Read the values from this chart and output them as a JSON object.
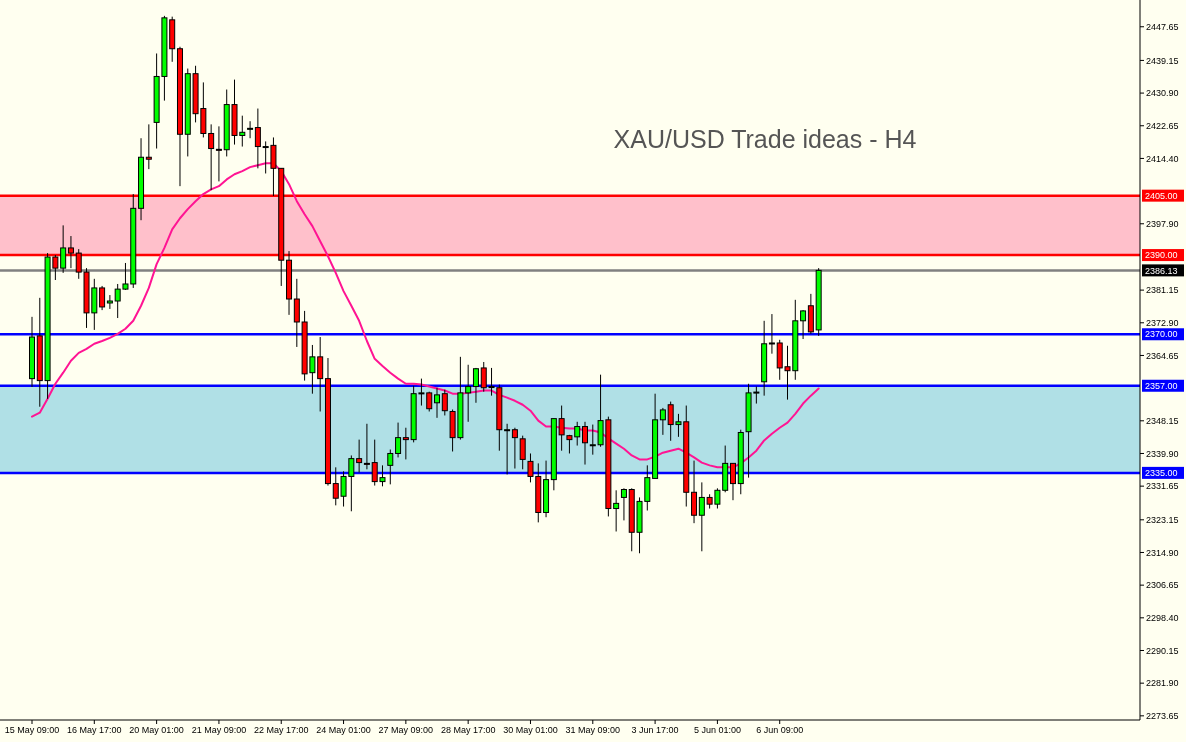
{
  "chart_data": {
    "type": "candlestick",
    "title": "XAU/USD Trade ideas - H4",
    "categories": [
      "15 May 09:00",
      null,
      null,
      null,
      null,
      null,
      null,
      null,
      "16 May 17:00",
      null,
      null,
      null,
      null,
      null,
      null,
      null,
      "20 May 01:00",
      null,
      null,
      null,
      null,
      null,
      null,
      null,
      "21 May 09:00",
      null,
      null,
      null,
      null,
      null,
      null,
      null,
      "22 May 17:00",
      null,
      null,
      null,
      null,
      null,
      null,
      null,
      "24 May 01:00",
      null,
      null,
      null,
      null,
      null,
      null,
      null,
      "27 May 09:00",
      null,
      null,
      null,
      null,
      null,
      null,
      null,
      "28 May 17:00",
      null,
      null,
      null,
      null,
      null,
      null,
      null,
      "30 May 01:00",
      null,
      null,
      null,
      null,
      null,
      null,
      null,
      "31 May 09:00",
      null,
      null,
      null,
      null,
      null,
      null,
      null,
      "3 Jun 17:00",
      null,
      null,
      null,
      null,
      null,
      null,
      null,
      "5 Jun 01:00",
      null,
      null,
      null,
      null,
      null,
      null,
      null,
      "6 Jun 09:00",
      null,
      null,
      null,
      null,
      null,
      null,
      null,
      null,
      null,
      null,
      null,
      null,
      null,
      null,
      null,
      null,
      null,
      null,
      null,
      null,
      null,
      null,
      null,
      null,
      null,
      null,
      null,
      null,
      null,
      null,
      null,
      null,
      null,
      null,
      null,
      null,
      null,
      null,
      null,
      null,
      null,
      null,
      null,
      null,
      null,
      null
    ],
    "ohlc": [
      [
        2358.8,
        2374.4,
        2356.7,
        2369.3
      ],
      [
        2369.6,
        2379.2,
        2351.7,
        2358.3
      ],
      [
        2358.3,
        2390.5,
        2353.7,
        2389.5
      ],
      [
        2389.5,
        2390.0,
        2383.7,
        2386.7
      ],
      [
        2386.7,
        2397.5,
        2385.5,
        2391.8
      ],
      [
        2391.8,
        2394.8,
        2386.7,
        2390.5
      ],
      [
        2390.5,
        2391.5,
        2384.0,
        2385.7
      ],
      [
        2385.7,
        2386.7,
        2371.6,
        2375.4
      ],
      [
        2375.4,
        2384.0,
        2371.1,
        2381.7
      ],
      [
        2381.7,
        2382.2,
        2376.1,
        2376.9
      ],
      [
        2377.9,
        2379.9,
        2376.4,
        2378.4
      ],
      [
        2378.4,
        2382.7,
        2374.1,
        2381.4
      ],
      [
        2381.4,
        2388.0,
        2381.2,
        2382.7
      ],
      [
        2382.7,
        2405.4,
        2381.7,
        2401.8
      ],
      [
        2401.8,
        2419.5,
        2398.8,
        2414.7
      ],
      [
        2414.7,
        2423.0,
        2411.7,
        2414.2
      ],
      [
        2423.5,
        2440.9,
        2416.9,
        2435.1
      ],
      [
        2435.1,
        2450.4,
        2429.0,
        2449.9
      ],
      [
        2449.4,
        2450.2,
        2438.8,
        2442.1
      ],
      [
        2442.1,
        2442.6,
        2407.4,
        2420.5
      ],
      [
        2420.5,
        2437.1,
        2414.9,
        2435.8
      ],
      [
        2435.8,
        2437.8,
        2423.5,
        2425.7
      ],
      [
        2427.0,
        2433.6,
        2419.7,
        2420.7
      ],
      [
        2420.7,
        2423.0,
        2406.4,
        2416.9
      ],
      [
        2416.7,
        2422.5,
        2408.6,
        2416.6
      ],
      [
        2416.6,
        2431.8,
        2414.9,
        2428.0
      ],
      [
        2428.0,
        2434.3,
        2417.9,
        2420.2
      ],
      [
        2420.2,
        2425.2,
        2417.4,
        2421.0
      ],
      [
        2422.0,
        2423.8,
        2419.5,
        2422.0
      ],
      [
        2422.2,
        2427.0,
        2411.9,
        2417.4
      ],
      [
        2417.4,
        2418.7,
        2410.6,
        2417.4
      ],
      [
        2417.7,
        2419.7,
        2404.9,
        2411.9
      ],
      [
        2411.9,
        2411.9,
        2382.2,
        2388.7
      ],
      [
        2388.7,
        2391.0,
        2374.9,
        2378.9
      ],
      [
        2378.9,
        2384.0,
        2366.8,
        2373.1
      ],
      [
        2373.1,
        2375.9,
        2358.3,
        2360.0
      ],
      [
        2360.3,
        2367.3,
        2355.0,
        2364.3
      ],
      [
        2364.3,
        2369.3,
        2350.5,
        2358.8
      ],
      [
        2358.8,
        2364.0,
        2331.8,
        2332.3
      ],
      [
        2332.3,
        2336.4,
        2326.8,
        2328.6
      ],
      [
        2329.1,
        2335.4,
        2326.5,
        2334.1
      ],
      [
        2334.1,
        2339.4,
        2325.3,
        2338.6
      ],
      [
        2338.6,
        2343.4,
        2335.1,
        2337.6
      ],
      [
        2337.4,
        2347.4,
        2335.9,
        2337.3
      ],
      [
        2337.6,
        2343.4,
        2331.8,
        2332.8
      ],
      [
        2332.8,
        2336.9,
        2331.6,
        2333.8
      ],
      [
        2336.9,
        2340.9,
        2332.1,
        2339.9
      ],
      [
        2339.9,
        2347.7,
        2338.9,
        2343.9
      ],
      [
        2343.9,
        2346.4,
        2338.4,
        2343.4
      ],
      [
        2343.4,
        2357.0,
        2342.7,
        2355.0
      ],
      [
        2355.0,
        2358.8,
        2352.0,
        2355.2
      ],
      [
        2355.2,
        2355.5,
        2350.5,
        2351.2
      ],
      [
        2352.7,
        2356.5,
        2348.9,
        2354.7
      ],
      [
        2355.0,
        2356.0,
        2349.5,
        2350.7
      ],
      [
        2350.5,
        2351.0,
        2340.4,
        2343.9
      ],
      [
        2343.9,
        2364.3,
        2343.4,
        2355.2
      ],
      [
        2355.2,
        2362.3,
        2347.9,
        2356.8
      ],
      [
        2356.8,
        2361.5,
        2352.7,
        2361.3
      ],
      [
        2361.5,
        2363.0,
        2355.5,
        2356.5
      ],
      [
        2356.8,
        2361.5,
        2354.5,
        2356.7
      ],
      [
        2356.5,
        2357.3,
        2340.6,
        2345.9
      ],
      [
        2345.9,
        2347.4,
        2334.6,
        2345.9
      ],
      [
        2345.9,
        2346.4,
        2336.1,
        2343.9
      ],
      [
        2343.6,
        2344.4,
        2335.9,
        2338.4
      ],
      [
        2337.9,
        2339.9,
        2332.6,
        2334.1
      ],
      [
        2334.1,
        2337.4,
        2322.5,
        2325.0
      ],
      [
        2325.0,
        2338.1,
        2323.8,
        2333.3
      ],
      [
        2333.3,
        2348.7,
        2330.6,
        2348.7
      ],
      [
        2348.7,
        2352.0,
        2340.6,
        2344.6
      ],
      [
        2344.4,
        2344.6,
        2339.9,
        2343.4
      ],
      [
        2344.1,
        2347.9,
        2341.9,
        2346.7
      ],
      [
        2346.7,
        2347.9,
        2337.1,
        2342.6
      ],
      [
        2342.1,
        2347.2,
        2339.6,
        2342.1
      ],
      [
        2342.1,
        2359.8,
        2341.6,
        2348.2
      ],
      [
        2348.4,
        2349.2,
        2324.0,
        2326.0
      ],
      [
        2326.0,
        2330.6,
        2320.2,
        2327.3
      ],
      [
        2328.8,
        2331.1,
        2323.0,
        2330.8
      ],
      [
        2330.8,
        2331.1,
        2315.2,
        2320.0
      ],
      [
        2320.0,
        2328.8,
        2314.7,
        2327.8
      ],
      [
        2327.8,
        2336.9,
        2325.5,
        2333.8
      ],
      [
        2333.6,
        2355.0,
        2333.6,
        2348.4
      ],
      [
        2348.4,
        2351.4,
        2344.6,
        2350.9
      ],
      [
        2352.2,
        2353.0,
        2343.1,
        2347.2
      ],
      [
        2347.2,
        2349.9,
        2344.1,
        2347.9
      ],
      [
        2347.9,
        2352.0,
        2326.5,
        2330.1
      ],
      [
        2330.1,
        2338.1,
        2322.3,
        2324.3
      ],
      [
        2324.3,
        2332.6,
        2315.2,
        2328.8
      ],
      [
        2328.8,
        2329.6,
        2326.0,
        2327.1
      ],
      [
        2327.1,
        2331.1,
        2326.0,
        2330.6
      ],
      [
        2330.6,
        2341.9,
        2330.1,
        2337.4
      ],
      [
        2337.4,
        2337.4,
        2328.1,
        2332.3
      ],
      [
        2332.3,
        2345.9,
        2329.6,
        2345.2
      ],
      [
        2345.4,
        2357.5,
        2333.8,
        2355.2
      ],
      [
        2355.2,
        2356.8,
        2352.5,
        2355.4
      ],
      [
        2358.0,
        2373.4,
        2354.5,
        2367.6
      ],
      [
        2367.8,
        2375.1,
        2365.1,
        2367.8
      ],
      [
        2367.8,
        2368.6,
        2358.5,
        2361.5
      ],
      [
        2361.8,
        2367.1,
        2353.5,
        2360.8
      ],
      [
        2360.8,
        2378.7,
        2358.5,
        2373.4
      ],
      [
        2373.4,
        2376.1,
        2368.8,
        2375.9
      ],
      [
        2377.2,
        2380.2,
        2370.1,
        2370.6
      ],
      [
        2371.1,
        2386.7,
        2369.6,
        2386.13
      ],
      null,
      null,
      null,
      null,
      null,
      null,
      null,
      null,
      null,
      null,
      null,
      null,
      null,
      null,
      null,
      null,
      null,
      null,
      null,
      null,
      null,
      null,
      null,
      null,
      null,
      null,
      null,
      null,
      null,
      null,
      null,
      null,
      null,
      null,
      null,
      null,
      null,
      null,
      null,
      null,
      null
    ],
    "colors": [
      "#00ff00",
      "#ff0000",
      "#00ff00",
      "#ff0000",
      "#00ff00",
      "#ff0000",
      "#ff0000",
      "#ff0000",
      "#00ff00",
      "#ff0000",
      "#00ff00",
      "#00ff00",
      "#00ff00",
      "#00ff00",
      "#00ff00",
      "#ff0000",
      "#00ff00",
      "#00ff00",
      "#ff0000",
      "#ff0000",
      "#00ff00",
      "#ff0000",
      "#ff0000",
      "#ff0000",
      "#ff0000",
      "#00ff00",
      "#ff0000",
      "#00ff00",
      "#00ff00",
      "#ff0000",
      "#00ff00",
      "#ff0000",
      "#ff0000",
      "#ff0000",
      "#ff0000",
      "#ff0000",
      "#00ff00",
      "#ff0000",
      "#ff0000",
      "#ff0000",
      "#00ff00",
      "#00ff00",
      "#ff0000",
      "#ff0000",
      "#ff0000",
      "#00ff00",
      "#00ff00",
      "#00ff00",
      "#ff0000",
      "#00ff00",
      "#00ff00",
      "#ff0000",
      "#00ff00",
      "#ff0000",
      "#ff0000",
      "#00ff00",
      "#00ff00",
      "#00ff00",
      "#ff0000",
      "#ff0000",
      "#ff0000",
      "#00ff00",
      "#ff0000",
      "#ff0000",
      "#ff0000",
      "#ff0000",
      "#00ff00",
      "#00ff00",
      "#ff0000",
      "#ff0000",
      "#00ff00",
      "#ff0000",
      "#00ff00",
      "#00ff00",
      "#ff0000",
      "#00ff00",
      "#00ff00",
      "#ff0000",
      "#00ff00",
      "#00ff00",
      "#00ff00",
      "#00ff00",
      "#ff0000",
      "#00ff00",
      "#ff0000",
      "#ff0000",
      "#00ff00",
      "#ff0000",
      "#00ff00",
      "#00ff00",
      "#ff0000",
      "#00ff00",
      "#00ff00",
      "#00ff00",
      "#00ff00",
      "#00ff00",
      "#ff0000",
      "#ff0000",
      "#00ff00",
      "#00ff00",
      "#ff0000",
      "#00ff00",
      null,
      null,
      null,
      null,
      null,
      null,
      null,
      null,
      null,
      null,
      null,
      null,
      null,
      null,
      null,
      null,
      null,
      null,
      null,
      null,
      null,
      null,
      null,
      null,
      null,
      null,
      null,
      null,
      null,
      null,
      null,
      null,
      null,
      null,
      null,
      null,
      null,
      null,
      null,
      null,
      null
    ],
    "series": [
      {
        "type": "line",
        "color": "#ff1493",
        "values": [
          2349.2,
          2350.2,
          2353.7,
          2357.5,
          2360.3,
          2363.3,
          2365.3,
          2366.3,
          2367.6,
          2368.3,
          2369.1,
          2370.1,
          2371.4,
          2373.4,
          2377.2,
          2381.7,
          2387.7,
          2391.8,
          2396.5,
          2399.3,
          2401.6,
          2403.6,
          2405.4,
          2406.6,
          2407.4,
          2409.1,
          2410.4,
          2411.2,
          2412.2,
          2412.7,
          2413.2,
          2413.2,
          2411.2,
          2407.9,
          2403.6,
          2400.3,
          2397.3,
          2393.5,
          2389.7,
          2385.5,
          2380.9,
          2377.2,
          2373.4,
          2368.3,
          2363.8,
          2362.0,
          2360.3,
          2358.8,
          2357.5,
          2357.5,
          2357.3,
          2356.8,
          2356.3,
          2355.8,
          2355.0,
          2355.0,
          2355.2,
          2355.5,
          2355.8,
          2355.8,
          2354.7,
          2354.0,
          2353.2,
          2352.2,
          2350.7,
          2348.2,
          2346.7,
          2346.7,
          2346.4,
          2346.2,
          2346.2,
          2345.7,
          2345.7,
          2345.2,
          2343.7,
          2342.4,
          2341.1,
          2339.4,
          2338.4,
          2338.4,
          2339.1,
          2340.1,
          2340.6,
          2341.1,
          2340.1,
          2338.9,
          2337.6,
          2336.9,
          2336.4,
          2336.4,
          2336.4,
          2337.4,
          2338.9,
          2340.6,
          2343.2,
          2344.9,
          2346.4,
          2347.7,
          2349.9,
          2352.5,
          2354.5,
          2356.3,
          null,
          null,
          null,
          null,
          null,
          null,
          null,
          null,
          null,
          null,
          null,
          null,
          null,
          null,
          null,
          null,
          null,
          null,
          null,
          null,
          null,
          null,
          null,
          null,
          null,
          null,
          null,
          null,
          null,
          null,
          null,
          null,
          null,
          null,
          null,
          null,
          null,
          null,
          null,
          null,
          null
        ]
      }
    ],
    "ylim": [
      2272.6,
      2453.9
    ],
    "yticks": [
      2447.65,
      2439.15,
      {
        "value": 2430.9,
        "label": "2430.90"
      },
      2422.65,
      {
        "value": 2414.4,
        "label": "2414.40"
      },
      {
        "value": 2397.9,
        "label": "2397.90"
      },
      2381.15,
      {
        "value": 2372.9,
        "label": "2372.90"
      },
      2364.65,
      2348.15,
      {
        "value": 2339.9,
        "label": "2339.90"
      },
      2331.65,
      2323.15,
      {
        "value": 2314.9,
        "label": "2314.90"
      },
      2306.65,
      {
        "value": 2298.4,
        "label": "2298.40"
      },
      2290.15,
      {
        "value": 2281.9,
        "label": "2281.90"
      },
      2273.65
    ],
    "bands": [
      {
        "axis": "y",
        "from": 2390,
        "to": 2405,
        "color": "#ffc0cb"
      },
      {
        "axis": "y",
        "from": 2335,
        "to": 2357,
        "color": "#b0e0e6"
      }
    ],
    "ref_lines": [
      {
        "axis": "y",
        "value": 2405,
        "label": "2405.00",
        "color": "#ff0000"
      },
      {
        "axis": "y",
        "value": 2390,
        "label": "2390.00",
        "color": "#ff0000"
      },
      {
        "axis": "y",
        "value": 2386.13,
        "label": "2386.13",
        "color": "#808080"
      },
      {
        "axis": "y",
        "value": 2370,
        "label": "2370.00",
        "color": "#0000ff"
      },
      {
        "axis": "y",
        "value": 2357,
        "label": "2357.00",
        "color": "#0000ff"
      },
      {
        "axis": "y",
        "value": 2335,
        "label": "2335.00",
        "color": "#0000ff"
      }
    ]
  }
}
